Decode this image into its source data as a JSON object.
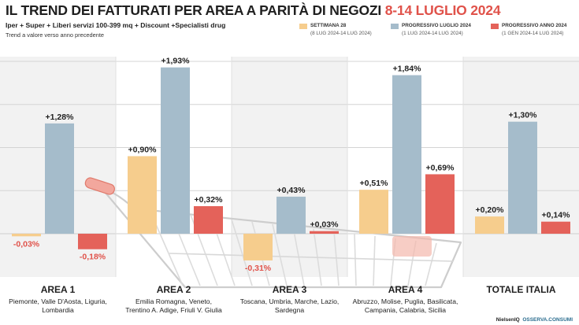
{
  "title": "IL TREND DEI FATTURATI PER AREA A PARITÀ DI NEGOZI",
  "title_accent": "8-14 LUGLIO 2024",
  "subtitle": "Iper + Super + Liberi servizi 100-399 mq + Discount +Specialisti drug",
  "note": "Trend a valore verso anno precedente",
  "legend": [
    {
      "name": "SETTIMANA 28",
      "sub": "(8 LUG 2024-14 LUG 2024)",
      "color": "#f6cd8d"
    },
    {
      "name": "PROGRESSIVO LUGLIO 2024",
      "sub": "(1 LUG 2024-14 LUG 2024)",
      "color": "#a5bccb"
    },
    {
      "name": "PROGRESSIVO ANNO 2024",
      "sub": "(1 GEN 2024-14 LUG 2024)",
      "color": "#e4625a"
    }
  ],
  "credits": {
    "nielsen": "NielsenIQ",
    "outlet": "OSSERVA.CONSUMI"
  },
  "chart_data": {
    "type": "bar",
    "categories": [
      "AREA 1",
      "AREA 2",
      "AREA 3",
      "AREA 4",
      "TOTALE ITALIA"
    ],
    "category_details": [
      [
        "Piemonte, Valle D'Aosta, Liguria,",
        "Lombardia"
      ],
      [
        "Emilia Romagna, Veneto,",
        "Trentino A. Adige, Friuli V. Giulia"
      ],
      [
        "Toscana, Umbria, Marche, Lazio,",
        "Sardegna"
      ],
      [
        "Abruzzo, Molise, Puglia, Basilicata,",
        "Campania, Calabria, Sicilia"
      ],
      []
    ],
    "series": [
      {
        "name": "SETTIMANA 28",
        "values": [
          -0.03,
          0.9,
          -0.31,
          0.51,
          0.2
        ],
        "labels": [
          "-0,03%",
          "+0,90%",
          "-0,31%",
          "+0,51%",
          "+0,20%"
        ],
        "color": "#f6cd8d"
      },
      {
        "name": "PROGRESSIVO LUGLIO 2024",
        "values": [
          1.28,
          1.93,
          0.43,
          1.84,
          1.3
        ],
        "labels": [
          "+1,28%",
          "+1,93%",
          "+0,43%",
          "+1,84%",
          "+1,30%"
        ],
        "color": "#a5bccb"
      },
      {
        "name": "PROGRESSIVO ANNO 2024",
        "values": [
          -0.18,
          0.32,
          0.03,
          0.69,
          0.14
        ],
        "labels": [
          "-0,18%",
          "+0,32%",
          "+0,03%",
          "+0,69%",
          "+0,14%"
        ],
        "color": "#e4625a"
      }
    ],
    "unit": "%",
    "grid": true,
    "legend_position": "top-right"
  }
}
